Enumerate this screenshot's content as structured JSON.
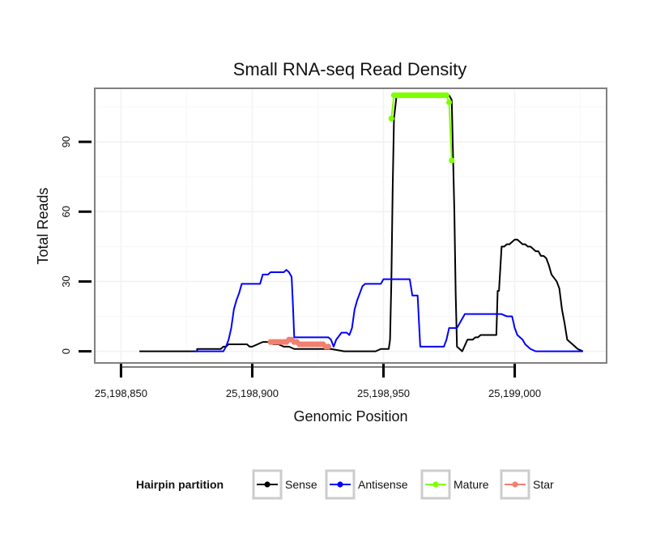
{
  "chart_data": {
    "type": "line",
    "title": "Small RNA-seq Read Density",
    "xlabel": "Genomic Position",
    "ylabel": "Total Reads",
    "xlim": [
      25198840,
      25199035
    ],
    "ylim": [
      -5,
      113
    ],
    "x_ticks": [
      25198850,
      25198900,
      25198950,
      25199000
    ],
    "x_tick_labels": [
      "25,198,850",
      "25,198,900",
      "25,198,950",
      "25,199,000"
    ],
    "y_ticks": [
      0,
      30,
      60,
      90
    ],
    "y_tick_labels": [
      "0",
      "30",
      "60",
      "90"
    ],
    "grid": true,
    "legend_title": "Hairpin partition",
    "legend_position": "bottom",
    "series": [
      {
        "name": "Sense",
        "color": "#000000",
        "points": false,
        "x": [
          25198857,
          25198879,
          25198879,
          25198888,
          25198889,
          25198890,
          25198891,
          25198892,
          25198893,
          25198896,
          25198898,
          25198899,
          25198900,
          25198902,
          25198904,
          25198906,
          25198908,
          25198910,
          25198912,
          25198914,
          25198916,
          25198918,
          25198920,
          25198924,
          25198927,
          25198930,
          25198935,
          25198940,
          25198944,
          25198947,
          25198949,
          25198952,
          25198952.5,
          25198953,
          25198953.5,
          25198954,
          25198955,
          25198960,
          25198970,
          25198974,
          25198975,
          25198976,
          25198977,
          25198977.5,
          25198978,
          25198979,
          25198980,
          25198982,
          25198983,
          25198984,
          25198985,
          25198986,
          25198987,
          25198988,
          25198992,
          25198993,
          25198993.5,
          25198994,
          25198995,
          25198996,
          25198997,
          25198998,
          25198999,
          25199000,
          25199001,
          25199002,
          25199003,
          25199004,
          25199005,
          25199006,
          25199008,
          25199009,
          25199010,
          25199011,
          25199012,
          25199013,
          25199014,
          25199016,
          25199017,
          25199018,
          25199019,
          25199020,
          25199021,
          25199022,
          25199023,
          25199024,
          25199026
        ],
        "y": [
          0,
          0,
          1,
          1,
          2,
          2,
          3,
          3,
          3,
          3,
          3,
          2,
          2,
          3,
          4,
          4,
          3,
          3,
          2,
          2,
          1,
          1,
          1,
          1,
          1,
          1,
          0,
          0,
          0,
          0,
          1,
          1,
          5,
          30,
          70,
          100,
          110,
          110,
          110,
          110,
          110,
          108,
          60,
          25,
          2,
          1,
          0,
          5,
          5,
          5,
          6,
          6,
          7,
          7,
          7,
          7,
          26,
          26,
          45,
          45,
          46,
          46,
          47,
          48,
          48,
          47,
          46,
          46,
          45,
          45,
          43,
          43,
          41,
          41,
          40,
          37,
          33,
          30,
          27,
          18,
          12,
          5,
          4,
          3,
          2,
          1,
          0
        ]
      },
      {
        "name": "Antisense",
        "color": "#0000ff",
        "points": false,
        "x": [
          25198878,
          25198889,
          25198890,
          25198891,
          25198892,
          25198893,
          25198894,
          25198895,
          25198896,
          25198903,
          25198904,
          25198906,
          25198907,
          25198908,
          25198912,
          25198913,
          25198914,
          25198915,
          25198915.5,
          25198916,
          25198920,
          25198929,
          25198930,
          25198931,
          25198932,
          25198934,
          25198936,
          25198937,
          25198938,
          25198939,
          25198940,
          25198941,
          25198942,
          25198943,
          25198949,
          25198950,
          25198960,
          25198961,
          25198963,
          25198964,
          25198973,
          25198974,
          25198975,
          25198978,
          25198979,
          25198980,
          25198981,
          25198982,
          25198995,
          25198997,
          25198999,
          25199000,
          25199001,
          25199003,
          25199004,
          25199005,
          25199006,
          25199008,
          25199010,
          25199026
        ],
        "y": [
          0,
          0,
          2,
          5,
          10,
          18,
          22,
          25,
          29,
          29,
          33,
          33,
          34,
          34,
          34,
          35,
          34,
          32,
          20,
          6,
          6,
          6,
          5,
          2,
          5,
          8,
          8,
          7,
          10,
          18,
          22,
          25,
          28,
          29,
          29,
          31,
          31,
          24,
          24,
          2,
          2,
          5,
          10,
          10,
          12,
          14,
          16,
          16,
          16,
          15,
          15,
          10,
          7,
          5,
          3,
          2,
          1,
          0,
          0,
          0
        ]
      },
      {
        "name": "Mature",
        "color": "#7fff00",
        "points": true,
        "x": [
          25198953,
          25198954,
          25198955,
          25198956,
          25198957,
          25198958,
          25198959,
          25198960,
          25198961,
          25198962,
          25198963,
          25198964,
          25198965,
          25198966,
          25198967,
          25198968,
          25198969,
          25198970,
          25198971,
          25198972,
          25198973,
          25198974,
          25198975,
          25198976
        ],
        "y": [
          100,
          110,
          110,
          110,
          110,
          110,
          110,
          110,
          110,
          110,
          110,
          110,
          110,
          110,
          110,
          110,
          110,
          110,
          110,
          110,
          110,
          110,
          107,
          82
        ]
      },
      {
        "name": "Star",
        "color": "#f08070",
        "points": true,
        "x": [
          25198907,
          25198908,
          25198909,
          25198910,
          25198911,
          25198912,
          25198913,
          25198914,
          25198915,
          25198916,
          25198917,
          25198918,
          25198919,
          25198920,
          25198921,
          25198922,
          25198923,
          25198924,
          25198925,
          25198926,
          25198927,
          25198928,
          25198929
        ],
        "y": [
          4,
          4,
          4,
          4,
          4,
          4,
          4,
          5,
          5,
          4,
          4,
          3,
          3,
          3,
          3,
          3,
          3,
          3,
          3,
          3,
          3,
          2,
          2
        ]
      }
    ]
  }
}
